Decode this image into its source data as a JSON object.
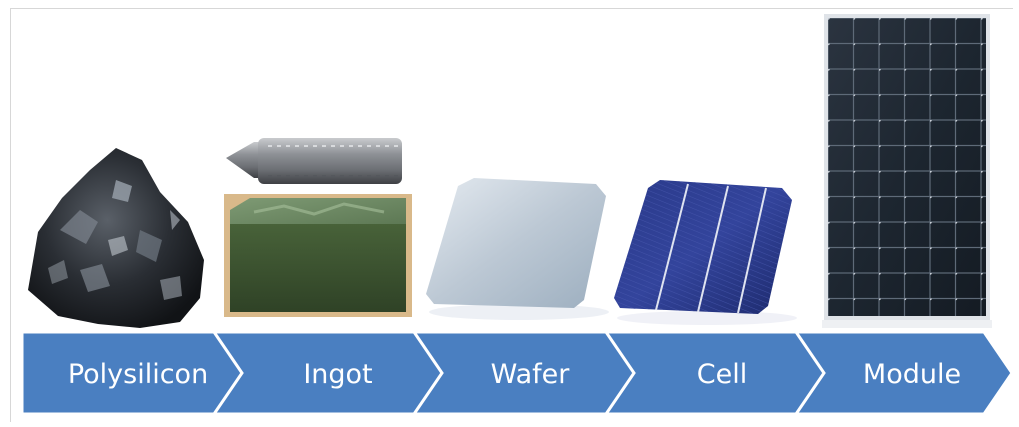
{
  "process_flow": {
    "steps": [
      {
        "label": "Polysilicon",
        "icon": "polysilicon-chunk"
      },
      {
        "label": "Ingot",
        "icon": "silicon-ingot"
      },
      {
        "label": "Wafer",
        "icon": "silicon-wafer"
      },
      {
        "label": "Cell",
        "icon": "solar-cell"
      },
      {
        "label": "Module",
        "icon": "solar-module"
      }
    ],
    "arrow_color": "#4a7fc1",
    "label_color": "#ffffff"
  }
}
